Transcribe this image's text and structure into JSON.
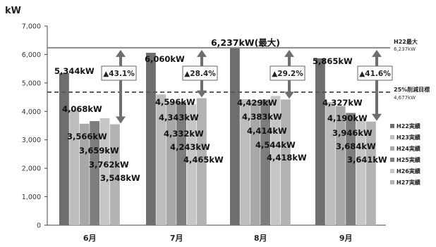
{
  "chart_data": {
    "type": "bar",
    "unit_label": "kW",
    "categories": [
      "6月",
      "7月",
      "8月",
      "9月"
    ],
    "ylim": [
      0,
      7000
    ],
    "yticks": [
      0,
      1000,
      2000,
      3000,
      4000,
      5000,
      6000,
      7000
    ],
    "ytick_labels": [
      "0",
      "1,000",
      "2,000",
      "3,000",
      "4,000",
      "5,000",
      "6,000",
      "7,000"
    ],
    "grid": false,
    "legend_position": "right",
    "series": [
      {
        "name": "H22実績",
        "color": "#6e6e6e",
        "values": [
          5344,
          6060,
          6237,
          5865
        ],
        "labels": [
          "5,344kW",
          "6,060kW",
          "",
          "5,865kW"
        ]
      },
      {
        "name": "H23実績",
        "color": "#bdbdbd",
        "values": [
          4068,
          4596,
          4429,
          4327
        ],
        "labels": [
          "4,068kW",
          "4,596kW",
          "4,429kW",
          "4,327kW"
        ]
      },
      {
        "name": "H24実績",
        "color": "#a8a8a8",
        "values": [
          3566,
          4343,
          4383,
          4190
        ],
        "labels": [
          "3,566kW",
          "4,343kW",
          "4,383kW",
          "4,190kW"
        ]
      },
      {
        "name": "H25実績",
        "color": "#7d7d7d",
        "values": [
          3659,
          4332,
          4414,
          3946
        ],
        "labels": [
          "3,659kW",
          "4,332kW",
          "4,414kW",
          "3,946kW"
        ]
      },
      {
        "name": "H26実績",
        "color": "#c6c6c6",
        "values": [
          3762,
          4243,
          4544,
          3684
        ],
        "labels": [
          "3,762kW",
          "4,243kW",
          "4,544kW",
          "3,684kW"
        ]
      },
      {
        "name": "H27実績",
        "color": "#b3b3b3",
        "values": [
          3548,
          4465,
          4418,
          3641
        ],
        "labels": [
          "3,548kW",
          "4,465kW",
          "4,418kW",
          "3,641kW"
        ]
      }
    ],
    "reference_lines": [
      {
        "name": "H22最大",
        "value_label": "6,237kW",
        "value": 6237,
        "style": "solid",
        "color": "#8a8a8a"
      },
      {
        "name": "25%削減目標",
        "value_label": "4,677kW",
        "value": 4677,
        "style": "dashed",
        "color": "#555555"
      }
    ],
    "max_annotation": "6,237kW(最大)",
    "reduction_badges": [
      "▲43.1%",
      "▲28.4%",
      "▲29.2%",
      "▲41.6%"
    ]
  }
}
